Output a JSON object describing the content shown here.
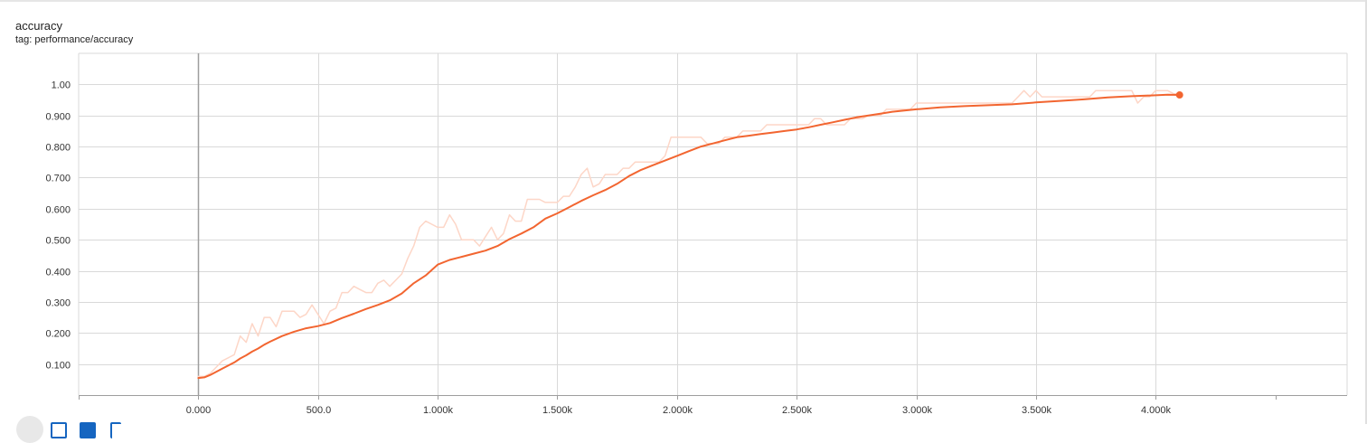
{
  "header": {
    "title": "accuracy",
    "tag": "tag: performance/accuracy"
  },
  "colors": {
    "smoothed": "#f26530",
    "raw": "#fdd6c7",
    "grid": "#d9d9d9",
    "axis": "#9e9e9e"
  },
  "chart_data": {
    "type": "line",
    "title": "accuracy",
    "xlabel": "",
    "ylabel": "",
    "xlim": [
      -500,
      4800
    ],
    "ylim": [
      0,
      1.1
    ],
    "x_ticks": [
      0,
      500,
      1000,
      1500,
      2000,
      2500,
      3000,
      3500,
      4000
    ],
    "x_tick_labels": [
      "0.000",
      "500.0",
      "1.000k",
      "1.500k",
      "2.000k",
      "2.500k",
      "3.000k",
      "3.500k",
      "4.000k"
    ],
    "y_ticks": [
      0.1,
      0.2,
      0.3,
      0.4,
      0.5,
      0.6,
      0.7,
      0.8,
      0.9,
      1.0
    ],
    "y_tick_labels": [
      "0.100",
      "0.200",
      "0.300",
      "0.400",
      "0.500",
      "0.600",
      "0.700",
      "0.800",
      "0.900",
      "1.00"
    ],
    "grid": true,
    "series": [
      {
        "key": "raw",
        "points": [
          [
            0,
            0.06
          ],
          [
            25,
            0.06
          ],
          [
            50,
            0.07
          ],
          [
            75,
            0.09
          ],
          [
            100,
            0.11
          ],
          [
            125,
            0.12
          ],
          [
            150,
            0.13
          ],
          [
            175,
            0.19
          ],
          [
            200,
            0.17
          ],
          [
            225,
            0.23
          ],
          [
            250,
            0.19
          ],
          [
            275,
            0.25
          ],
          [
            300,
            0.25
          ],
          [
            325,
            0.22
          ],
          [
            350,
            0.27
          ],
          [
            375,
            0.27
          ],
          [
            400,
            0.27
          ],
          [
            425,
            0.25
          ],
          [
            450,
            0.26
          ],
          [
            475,
            0.29
          ],
          [
            500,
            0.26
          ],
          [
            525,
            0.23
          ],
          [
            550,
            0.27
          ],
          [
            575,
            0.28
          ],
          [
            600,
            0.33
          ],
          [
            625,
            0.33
          ],
          [
            650,
            0.35
          ],
          [
            675,
            0.34
          ],
          [
            700,
            0.33
          ],
          [
            725,
            0.33
          ],
          [
            750,
            0.36
          ],
          [
            775,
            0.37
          ],
          [
            800,
            0.35
          ],
          [
            825,
            0.37
          ],
          [
            850,
            0.39
          ],
          [
            875,
            0.44
          ],
          [
            900,
            0.48
          ],
          [
            925,
            0.54
          ],
          [
            950,
            0.56
          ],
          [
            975,
            0.55
          ],
          [
            1000,
            0.54
          ],
          [
            1025,
            0.54
          ],
          [
            1050,
            0.58
          ],
          [
            1075,
            0.55
          ],
          [
            1100,
            0.5
          ],
          [
            1125,
            0.5
          ],
          [
            1150,
            0.5
          ],
          [
            1175,
            0.48
          ],
          [
            1200,
            0.51
          ],
          [
            1225,
            0.54
          ],
          [
            1250,
            0.5
          ],
          [
            1275,
            0.52
          ],
          [
            1300,
            0.58
          ],
          [
            1325,
            0.56
          ],
          [
            1350,
            0.56
          ],
          [
            1375,
            0.63
          ],
          [
            1400,
            0.63
          ],
          [
            1425,
            0.63
          ],
          [
            1450,
            0.62
          ],
          [
            1475,
            0.62
          ],
          [
            1500,
            0.62
          ],
          [
            1525,
            0.64
          ],
          [
            1550,
            0.64
          ],
          [
            1575,
            0.67
          ],
          [
            1600,
            0.71
          ],
          [
            1625,
            0.73
          ],
          [
            1650,
            0.67
          ],
          [
            1675,
            0.68
          ],
          [
            1700,
            0.71
          ],
          [
            1725,
            0.71
          ],
          [
            1750,
            0.71
          ],
          [
            1775,
            0.73
          ],
          [
            1800,
            0.73
          ],
          [
            1825,
            0.75
          ],
          [
            1850,
            0.75
          ],
          [
            1875,
            0.75
          ],
          [
            1900,
            0.75
          ],
          [
            1925,
            0.75
          ],
          [
            1950,
            0.77
          ],
          [
            1975,
            0.83
          ],
          [
            2000,
            0.83
          ],
          [
            2100,
            0.83
          ],
          [
            2125,
            0.81
          ],
          [
            2175,
            0.81
          ],
          [
            2200,
            0.83
          ],
          [
            2250,
            0.83
          ],
          [
            2275,
            0.85
          ],
          [
            2350,
            0.85
          ],
          [
            2375,
            0.87
          ],
          [
            2550,
            0.87
          ],
          [
            2575,
            0.89
          ],
          [
            2600,
            0.89
          ],
          [
            2625,
            0.87
          ],
          [
            2700,
            0.87
          ],
          [
            2725,
            0.89
          ],
          [
            2775,
            0.89
          ],
          [
            2800,
            0.9
          ],
          [
            2850,
            0.9
          ],
          [
            2875,
            0.92
          ],
          [
            2975,
            0.92
          ],
          [
            3000,
            0.94
          ],
          [
            3400,
            0.94
          ],
          [
            3425,
            0.96
          ],
          [
            3450,
            0.98
          ],
          [
            3475,
            0.96
          ],
          [
            3500,
            0.98
          ],
          [
            3525,
            0.96
          ],
          [
            3600,
            0.96
          ],
          [
            3725,
            0.96
          ],
          [
            3750,
            0.98
          ],
          [
            3900,
            0.98
          ],
          [
            3925,
            0.94
          ],
          [
            3950,
            0.96
          ],
          [
            3975,
            0.96
          ],
          [
            4000,
            0.98
          ],
          [
            4050,
            0.98
          ],
          [
            4075,
            0.97
          ],
          [
            4100,
            0.97
          ]
        ]
      },
      {
        "key": "smoothed",
        "points": [
          [
            0,
            0.055
          ],
          [
            25,
            0.057
          ],
          [
            50,
            0.065
          ],
          [
            100,
            0.085
          ],
          [
            150,
            0.105
          ],
          [
            175,
            0.118
          ],
          [
            200,
            0.128
          ],
          [
            225,
            0.14
          ],
          [
            250,
            0.15
          ],
          [
            275,
            0.162
          ],
          [
            300,
            0.172
          ],
          [
            350,
            0.19
          ],
          [
            400,
            0.204
          ],
          [
            450,
            0.215
          ],
          [
            500,
            0.222
          ],
          [
            550,
            0.232
          ],
          [
            600,
            0.248
          ],
          [
            650,
            0.262
          ],
          [
            700,
            0.277
          ],
          [
            750,
            0.29
          ],
          [
            800,
            0.305
          ],
          [
            850,
            0.327
          ],
          [
            900,
            0.36
          ],
          [
            950,
            0.385
          ],
          [
            1000,
            0.42
          ],
          [
            1050,
            0.435
          ],
          [
            1100,
            0.445
          ],
          [
            1150,
            0.455
          ],
          [
            1200,
            0.465
          ],
          [
            1250,
            0.48
          ],
          [
            1300,
            0.502
          ],
          [
            1350,
            0.52
          ],
          [
            1400,
            0.54
          ],
          [
            1450,
            0.568
          ],
          [
            1500,
            0.585
          ],
          [
            1550,
            0.605
          ],
          [
            1600,
            0.625
          ],
          [
            1650,
            0.643
          ],
          [
            1700,
            0.66
          ],
          [
            1750,
            0.68
          ],
          [
            1800,
            0.705
          ],
          [
            1850,
            0.725
          ],
          [
            1900,
            0.74
          ],
          [
            1950,
            0.755
          ],
          [
            2000,
            0.77
          ],
          [
            2050,
            0.785
          ],
          [
            2100,
            0.8
          ],
          [
            2150,
            0.81
          ],
          [
            2200,
            0.82
          ],
          [
            2250,
            0.83
          ],
          [
            2300,
            0.835
          ],
          [
            2350,
            0.84
          ],
          [
            2400,
            0.845
          ],
          [
            2450,
            0.85
          ],
          [
            2500,
            0.855
          ],
          [
            2550,
            0.862
          ],
          [
            2600,
            0.87
          ],
          [
            2650,
            0.878
          ],
          [
            2700,
            0.886
          ],
          [
            2750,
            0.894
          ],
          [
            2800,
            0.9
          ],
          [
            2850,
            0.906
          ],
          [
            2900,
            0.912
          ],
          [
            2950,
            0.916
          ],
          [
            3000,
            0.92
          ],
          [
            3100,
            0.926
          ],
          [
            3200,
            0.93
          ],
          [
            3300,
            0.933
          ],
          [
            3400,
            0.936
          ],
          [
            3500,
            0.942
          ],
          [
            3600,
            0.947
          ],
          [
            3700,
            0.952
          ],
          [
            3800,
            0.958
          ],
          [
            3900,
            0.962
          ],
          [
            4000,
            0.965
          ],
          [
            4050,
            0.967
          ],
          [
            4100,
            0.966
          ]
        ]
      }
    ]
  }
}
